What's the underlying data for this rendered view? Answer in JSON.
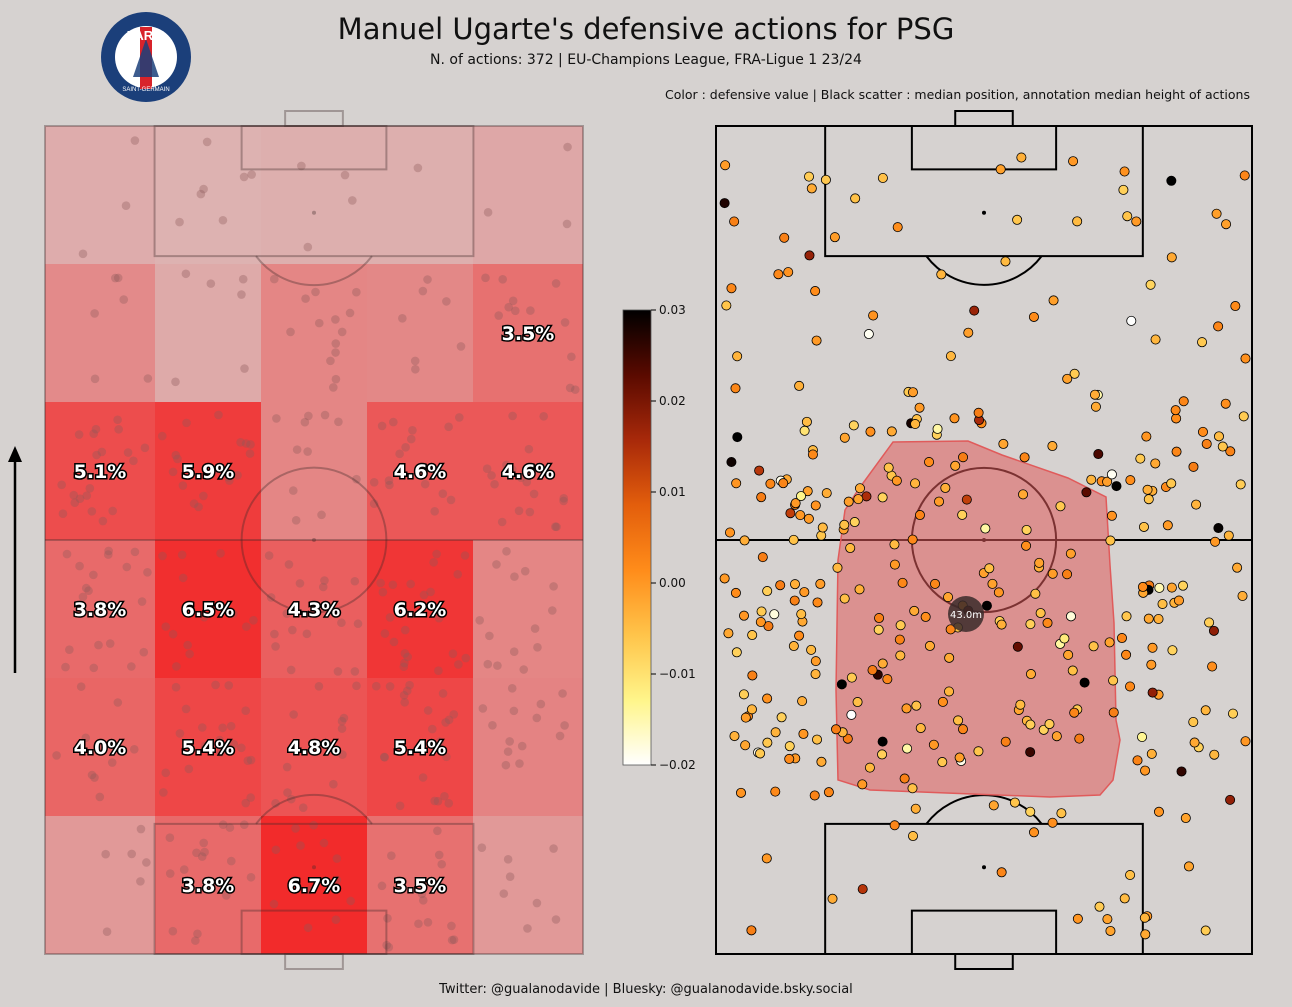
{
  "header": {
    "title": "Manuel Ugarte's defensive actions for PSG",
    "subtitle": "N. of actions: 372 |  EU-Champions League, FRA-Ligue 1 23/24",
    "legend_note": "Color : defensive value | Black scatter : median position, annotation median height of actions"
  },
  "logo": {
    "top_text": "PARIS",
    "bottom_text": "SAINT-GERMAIN",
    "colors": {
      "navy": "#1b3f7a",
      "red": "#d8232a",
      "white": "#ffffff"
    }
  },
  "footer": {
    "credits": "Twitter: @gualanodavide | Bluesky: @gualanodavide.bsky.social"
  },
  "chart_data": [
    {
      "type": "heatmap",
      "description_role": "zone share of defensive actions (left pitch)",
      "orientation": "vertical, attacking upward",
      "rows_top_to_bottom": 6,
      "cols_left_to_right": 5,
      "cell_labels": [
        [
          "",
          "",
          "",
          "",
          ""
        ],
        [
          "",
          "",
          "",
          "",
          "3.5%"
        ],
        [
          "5.1%",
          "5.9%",
          "",
          "4.6%",
          "4.6%"
        ],
        [
          "3.8%",
          "6.5%",
          "4.3%",
          "6.2%",
          ""
        ],
        [
          "4.0%",
          "5.4%",
          "4.8%",
          "5.4%",
          ""
        ],
        [
          "",
          "3.8%",
          "6.7%",
          "3.5%",
          ""
        ]
      ],
      "cell_values_pct": [
        [
          1.0,
          0.8,
          0.9,
          0.9,
          1.2
        ],
        [
          2.4,
          1.1,
          2.6,
          2.5,
          3.5
        ],
        [
          5.1,
          5.9,
          2.6,
          4.6,
          4.6
        ],
        [
          3.8,
          6.5,
          4.3,
          6.2,
          2.6
        ],
        [
          4.0,
          5.4,
          4.8,
          5.4,
          2.7
        ],
        [
          1.8,
          3.8,
          6.7,
          3.5,
          1.8
        ]
      ],
      "colors": {
        "low": "#d9c9c8",
        "high": "#f22b2b"
      }
    },
    {
      "type": "scatter",
      "description_role": "defensive actions colored by defensive value (right pitch)",
      "n_points": 372,
      "median_height_label": "43.0m",
      "colorbar": {
        "ticks": [
          "0.03",
          "0.02",
          "0.01",
          "0.00",
          "−0.01",
          "−0.02"
        ],
        "vmin": -0.02,
        "vmax": 0.03,
        "colormap": [
          "#ffffff",
          "#fff58a",
          "#ffc44a",
          "#ff8c1a",
          "#e35e0c",
          "#a8290a",
          "#5a0a00",
          "#000000"
        ]
      },
      "hull_color": "#e05b5b"
    }
  ]
}
